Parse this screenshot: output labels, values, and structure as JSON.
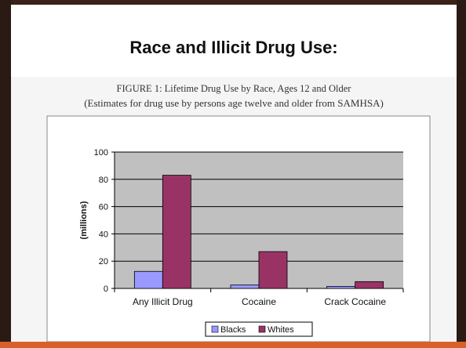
{
  "slide": {
    "title": "Race and Illicit Drug Use:"
  },
  "chart_data": {
    "type": "bar",
    "title": "FIGURE 1: Lifetime Drug Use by Race, Ages 12 and Older",
    "subtitle": "(Estimates for drug use by persons age twelve and older from SAMHSA)",
    "xlabel": "",
    "ylabel": "(millions)",
    "ylim": [
      0,
      100
    ],
    "yticks": [
      0,
      20,
      40,
      60,
      80,
      100
    ],
    "categories": [
      "Any Illicit Drug",
      "Cocaine",
      "Crack Cocaine"
    ],
    "series": [
      {
        "name": "Blacks",
        "values": [
          12.5,
          2.5,
          1.5
        ],
        "color": "#9999ff"
      },
      {
        "name": "Whites",
        "values": [
          83,
          27,
          5
        ],
        "color": "#993366"
      }
    ],
    "plot_background": "#c0c0c0",
    "grid": true,
    "legend_position": "bottom"
  }
}
